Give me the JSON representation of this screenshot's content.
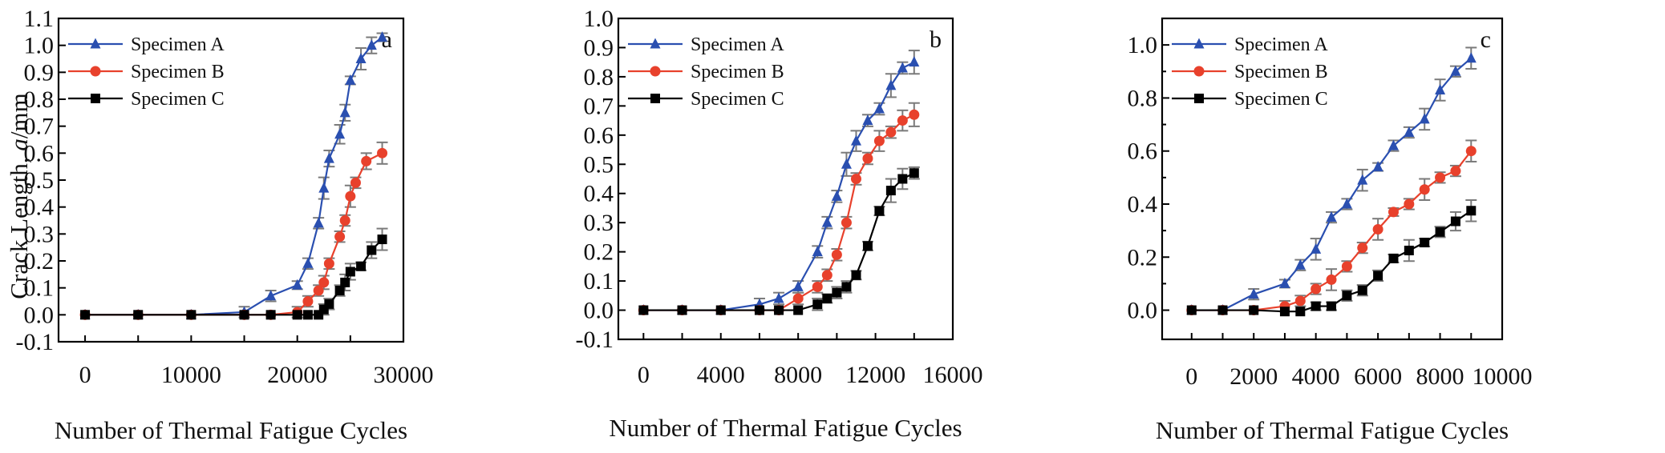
{
  "figure": {
    "y_axis_title_prefix": "Crack Length, ",
    "y_axis_title_italic": "a",
    "y_axis_title_suffix": "/mm"
  },
  "colors": {
    "Specimen A": "#2a4fb0",
    "Specimen B": "#e8412c",
    "Specimen C": "#000000",
    "errorbar": "#7a7a7a"
  },
  "chart_data": [
    {
      "type": "line",
      "panel_label": "a",
      "title": "",
      "xlabel": "Number of Thermal Fatigue Cycles",
      "ylabel": "Crack Length, a/mm",
      "xlim": [
        -2500,
        30000
      ],
      "ylim": [
        -0.1,
        1.1
      ],
      "xticks": [
        0,
        5000,
        10000,
        15000,
        20000,
        25000,
        30000
      ],
      "xtick_labels": [
        "0",
        "",
        "10000",
        "",
        "20000",
        "",
        "30000"
      ],
      "yticks": [
        -0.1,
        0.0,
        0.1,
        0.2,
        0.3,
        0.4,
        0.5,
        0.6,
        0.7,
        0.8,
        0.9,
        1.0,
        1.1
      ],
      "ytick_labels": [
        "-0.1",
        "0.0",
        "0.1",
        "0.2",
        "0.3",
        "0.4",
        "0.5",
        "0.6",
        "0.7",
        "0.8",
        "0.9",
        "1.0",
        "1.1"
      ],
      "legend": [
        "Specimen A",
        "Specimen B",
        "Specimen C"
      ],
      "legend_position": "top-left",
      "grid": false,
      "series": [
        {
          "name": "Specimen A",
          "marker": "triangle",
          "x": [
            0,
            5000,
            10000,
            15000,
            17500,
            20000,
            21000,
            22000,
            22500,
            23000,
            24000,
            24500,
            25000,
            26000,
            27000,
            28000
          ],
          "y": [
            0.0,
            0.0,
            0.0,
            0.01,
            0.07,
            0.11,
            0.19,
            0.34,
            0.47,
            0.58,
            0.67,
            0.75,
            0.87,
            0.95,
            1.0,
            1.03
          ],
          "err": [
            0.005,
            0.005,
            0.005,
            0.02,
            0.02,
            0.015,
            0.02,
            0.02,
            0.04,
            0.03,
            0.035,
            0.03,
            0.015,
            0.04,
            0.03,
            0.015
          ]
        },
        {
          "name": "Specimen B",
          "marker": "circle",
          "x": [
            0,
            5000,
            10000,
            15000,
            17500,
            20000,
            21000,
            22000,
            22500,
            23000,
            24000,
            24500,
            25000,
            25500,
            26500,
            28000
          ],
          "y": [
            0.0,
            0.0,
            0.0,
            0.0,
            0.0,
            0.01,
            0.05,
            0.09,
            0.12,
            0.19,
            0.29,
            0.35,
            0.44,
            0.49,
            0.57,
            0.6
          ],
          "err": [
            0.005,
            0.005,
            0.005,
            0.005,
            0.005,
            0.02,
            0.02,
            0.02,
            0.025,
            0.02,
            0.02,
            0.02,
            0.04,
            0.02,
            0.03,
            0.04
          ]
        },
        {
          "name": "Specimen C",
          "marker": "square",
          "x": [
            0,
            5000,
            10000,
            15000,
            17500,
            20000,
            21000,
            22000,
            22500,
            23000,
            24000,
            24500,
            25000,
            26000,
            27000,
            28000
          ],
          "y": [
            0.0,
            0.0,
            0.0,
            0.0,
            0.0,
            0.0,
            0.0,
            0.0,
            0.02,
            0.04,
            0.09,
            0.12,
            0.16,
            0.18,
            0.24,
            0.28
          ],
          "err": [
            0.005,
            0.005,
            0.005,
            0.005,
            0.005,
            0.005,
            0.005,
            0.005,
            0.02,
            0.02,
            0.02,
            0.03,
            0.03,
            0.015,
            0.03,
            0.04
          ]
        }
      ]
    },
    {
      "type": "line",
      "panel_label": "b",
      "title": "",
      "xlabel": "Number of Thermal Fatigue Cycles",
      "ylabel": "Crack Length, a/mm",
      "xlim": [
        -1300,
        16000
      ],
      "ylim": [
        -0.1,
        1.0
      ],
      "xticks": [
        0,
        2000,
        4000,
        6000,
        8000,
        10000,
        12000,
        14000,
        16000
      ],
      "xtick_labels": [
        "0",
        "",
        "4000",
        "",
        "8000",
        "",
        "12000",
        "",
        "16000"
      ],
      "yticks": [
        -0.1,
        0.0,
        0.1,
        0.2,
        0.3,
        0.4,
        0.5,
        0.6,
        0.7,
        0.8,
        0.9,
        1.0
      ],
      "ytick_labels": [
        "-0.1",
        "0.0",
        "0.1",
        "0.2",
        "0.3",
        "0.4",
        "0.5",
        "0.6",
        "0.7",
        "0.8",
        "0.9",
        "1.0"
      ],
      "legend": [
        "Specimen A",
        "Specimen B",
        "Specimen C"
      ],
      "legend_position": "top-left",
      "grid": false,
      "series": [
        {
          "name": "Specimen A",
          "marker": "triangle",
          "x": [
            0,
            2000,
            4000,
            6000,
            7000,
            8000,
            9000,
            9500,
            10000,
            10500,
            11000,
            11600,
            12200,
            12800,
            13400,
            14000
          ],
          "y": [
            0.0,
            0.0,
            0.0,
            0.02,
            0.04,
            0.08,
            0.2,
            0.3,
            0.39,
            0.5,
            0.58,
            0.65,
            0.69,
            0.77,
            0.83,
            0.85
          ],
          "err": [
            0.005,
            0.005,
            0.005,
            0.02,
            0.02,
            0.02,
            0.02,
            0.02,
            0.02,
            0.04,
            0.035,
            0.02,
            0.02,
            0.04,
            0.02,
            0.04
          ]
        },
        {
          "name": "Specimen B",
          "marker": "circle",
          "x": [
            0,
            2000,
            4000,
            6000,
            7000,
            8000,
            9000,
            9500,
            10000,
            10500,
            11000,
            11600,
            12200,
            12800,
            13400,
            14000
          ],
          "y": [
            0.0,
            0.0,
            0.0,
            0.0,
            0.0,
            0.04,
            0.08,
            0.12,
            0.19,
            0.3,
            0.45,
            0.52,
            0.58,
            0.61,
            0.65,
            0.67
          ],
          "err": [
            0.005,
            0.005,
            0.005,
            0.005,
            0.005,
            0.02,
            0.02,
            0.02,
            0.02,
            0.02,
            0.02,
            0.02,
            0.035,
            0.02,
            0.035,
            0.04
          ]
        },
        {
          "name": "Specimen C",
          "marker": "square",
          "x": [
            0,
            2000,
            4000,
            6000,
            7000,
            8000,
            9000,
            9500,
            10000,
            10500,
            11000,
            11600,
            12200,
            12800,
            13400,
            14000
          ],
          "y": [
            0.0,
            0.0,
            0.0,
            0.0,
            0.0,
            0.0,
            0.02,
            0.04,
            0.06,
            0.08,
            0.12,
            0.22,
            0.34,
            0.41,
            0.45,
            0.47
          ],
          "err": [
            0.005,
            0.005,
            0.005,
            0.005,
            0.005,
            0.005,
            0.02,
            0.015,
            0.02,
            0.02,
            0.015,
            0.015,
            0.015,
            0.04,
            0.035,
            0.02
          ]
        }
      ]
    },
    {
      "type": "line",
      "panel_label": "c",
      "title": "",
      "xlabel": "Number of Thermal Fatigue Cycles",
      "ylabel": "Crack Length, a/mm",
      "xlim": [
        -950,
        10000
      ],
      "ylim": [
        -0.11,
        1.1
      ],
      "xticks": [
        0,
        1000,
        2000,
        3000,
        4000,
        5000,
        6000,
        7000,
        8000,
        9000,
        10000
      ],
      "xtick_labels": [
        "0",
        "",
        "2000",
        "",
        "4000",
        "",
        "6000",
        "",
        "8000",
        "",
        "10000"
      ],
      "yticks": [
        0.0,
        0.1,
        0.2,
        0.3,
        0.4,
        0.5,
        0.6,
        0.7,
        0.8,
        0.9,
        1.0
      ],
      "ytick_labels": [
        "0.0",
        "",
        "0.2",
        "",
        "0.4",
        "",
        "0.6",
        "",
        "0.8",
        "",
        "1.0"
      ],
      "legend": [
        "Specimen A",
        "Specimen B",
        "Specimen C"
      ],
      "legend_position": "top-left",
      "grid": false,
      "series": [
        {
          "name": "Specimen A",
          "marker": "triangle",
          "x": [
            0,
            1000,
            2000,
            3000,
            3500,
            4000,
            4500,
            5000,
            5500,
            6000,
            6500,
            7000,
            7500,
            8000,
            8500,
            9000
          ],
          "y": [
            0.0,
            0.0,
            0.06,
            0.1,
            0.17,
            0.23,
            0.35,
            0.4,
            0.49,
            0.54,
            0.62,
            0.67,
            0.72,
            0.83,
            0.9,
            0.95
          ],
          "err": [
            0.005,
            0.005,
            0.02,
            0.015,
            0.02,
            0.04,
            0.02,
            0.02,
            0.04,
            0.015,
            0.02,
            0.02,
            0.04,
            0.04,
            0.02,
            0.04
          ]
        },
        {
          "name": "Specimen B",
          "marker": "circle",
          "x": [
            0,
            1000,
            2000,
            3000,
            3500,
            4000,
            4500,
            5000,
            5500,
            6000,
            6500,
            7000,
            7500,
            8000,
            8500,
            9000
          ],
          "y": [
            0.0,
            0.0,
            0.0,
            0.015,
            0.035,
            0.08,
            0.115,
            0.165,
            0.235,
            0.305,
            0.37,
            0.4,
            0.455,
            0.5,
            0.525,
            0.6
          ],
          "err": [
            0.005,
            0.005,
            0.005,
            0.02,
            0.02,
            0.02,
            0.04,
            0.02,
            0.02,
            0.04,
            0.015,
            0.02,
            0.04,
            0.02,
            0.02,
            0.04
          ]
        },
        {
          "name": "Specimen C",
          "marker": "square",
          "x": [
            0,
            1000,
            2000,
            3000,
            3500,
            4000,
            4500,
            5000,
            5500,
            6000,
            6500,
            7000,
            7500,
            8000,
            8500,
            9000
          ],
          "y": [
            0.0,
            0.0,
            0.0,
            -0.005,
            -0.005,
            0.015,
            0.015,
            0.055,
            0.075,
            0.13,
            0.195,
            0.225,
            0.255,
            0.295,
            0.335,
            0.375
          ],
          "err": [
            0.005,
            0.005,
            0.005,
            0.005,
            0.005,
            0.015,
            0.015,
            0.02,
            0.02,
            0.02,
            0.015,
            0.04,
            0.015,
            0.02,
            0.035,
            0.04
          ]
        }
      ]
    }
  ]
}
